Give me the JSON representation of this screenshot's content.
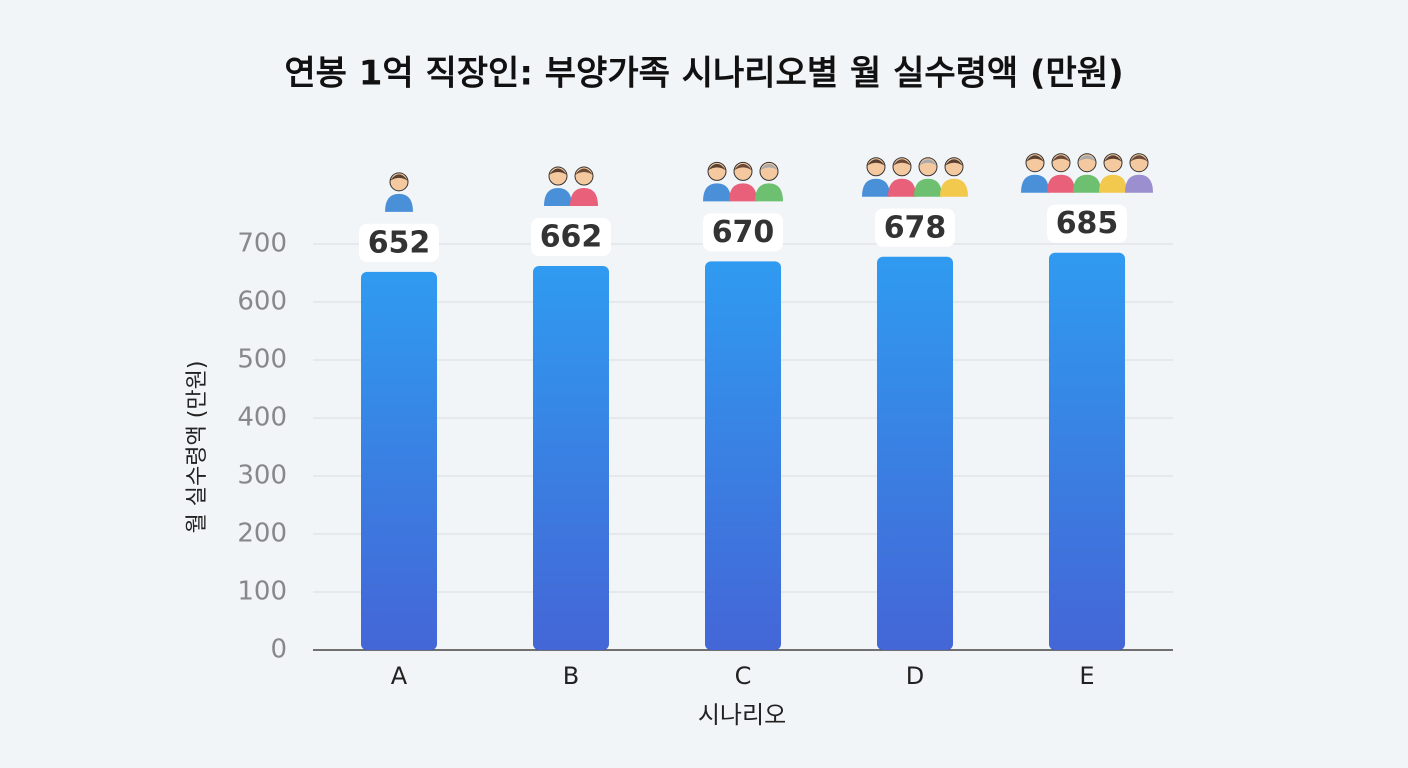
{
  "chart_data": {
    "type": "bar",
    "title": "연봉 1억 직장인: 부양가족 시나리오별 월 실수령액 (만원)",
    "x_label": "시나리오",
    "y_label": "월 실수령액 (만원)",
    "categories": [
      "A",
      "B",
      "C",
      "D",
      "E"
    ],
    "values": [
      652,
      662,
      670,
      678,
      685
    ],
    "color": "#2f9bf0",
    "ylim": [
      0,
      700
    ],
    "yticks": [
      0,
      100,
      200,
      300,
      400,
      500,
      600,
      700
    ],
    "grid": true
  }
}
